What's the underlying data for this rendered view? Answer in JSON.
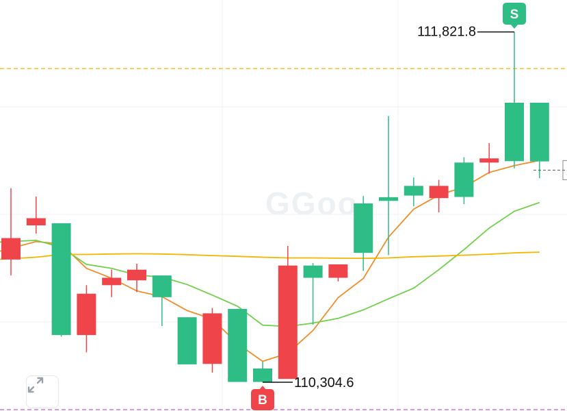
{
  "watermark": "GGoo",
  "chart_data": {
    "type": "candlestick",
    "ylim": [
      110180,
      111960
    ],
    "grid": true,
    "candles": [
      {
        "open": 110929,
        "close": 110836,
        "high": 111145,
        "low": 110767
      },
      {
        "open": 111015,
        "close": 110984,
        "high": 111109,
        "low": 110948
      },
      {
        "open": 110509,
        "close": 110993,
        "high": 110993,
        "low": 110502
      },
      {
        "open": 110688,
        "close": 110509,
        "high": 110725,
        "low": 110434
      },
      {
        "open": 110757,
        "close": 110725,
        "high": 110793,
        "low": 110673
      },
      {
        "open": 110792,
        "close": 110746,
        "high": 110818,
        "low": 110695
      },
      {
        "open": 110673,
        "close": 110767,
        "high": 110767,
        "low": 110548
      },
      {
        "open": 110382,
        "close": 110586,
        "high": 110586,
        "low": 110382
      },
      {
        "open": 110603,
        "close": 110384,
        "high": 110626,
        "low": 110346
      },
      {
        "open": 110306,
        "close": 110622,
        "high": 110622,
        "low": 110306
      },
      {
        "open": 110306,
        "close": 110364,
        "high": 110394,
        "low": 110304.6
      },
      {
        "open": 110810,
        "close": 110319,
        "high": 110895,
        "low": 110319
      },
      {
        "open": 110757,
        "close": 110810,
        "high": 110821,
        "low": 110554
      },
      {
        "open": 110815,
        "close": 110757,
        "high": 110815,
        "low": 110741
      },
      {
        "open": 110865,
        "close": 111079,
        "high": 111111,
        "low": 110787
      },
      {
        "open": 111090,
        "close": 111106,
        "high": 111458,
        "low": 110855
      },
      {
        "open": 111113,
        "close": 111155,
        "high": 111191,
        "low": 111067
      },
      {
        "open": 111155,
        "close": 111102,
        "high": 111181,
        "low": 111040
      },
      {
        "open": 111107,
        "close": 111256,
        "high": 111279,
        "low": 111076
      },
      {
        "open": 111274,
        "close": 111256,
        "high": 111340,
        "low": 111208
      },
      {
        "open": 111262,
        "close": 111515,
        "high": 111821.8,
        "low": 111231
      },
      {
        "open": 111261,
        "close": 111515,
        "high": 111515,
        "low": 111188
      }
    ],
    "moving_averages": [
      {
        "color": "#f28c28",
        "values": [
          110872,
          110914,
          110903,
          110798,
          110755,
          110700,
          110675,
          110615,
          110578,
          110472,
          110395,
          110430,
          110529,
          110671,
          110754,
          110933,
          111054,
          111115,
          111150,
          111213,
          111243,
          111265
        ]
      },
      {
        "color": "#6fd14a",
        "values": [
          110912,
          110919,
          110889,
          110815,
          110798,
          110769,
          110760,
          110728,
          110682,
          110634,
          110552,
          110546,
          110561,
          110581,
          110618,
          110666,
          110712,
          110792,
          110879,
          110972,
          111045,
          111083
        ]
      },
      {
        "color": "#f5b400",
        "values": [
          110837,
          110846,
          110858,
          110858,
          110860,
          110861,
          110860,
          110857,
          110853,
          110850,
          110846,
          110843,
          110843,
          110842,
          110841,
          110843,
          110848,
          110851,
          110855,
          110859,
          110865,
          110868
        ]
      }
    ],
    "reference_lines": [
      {
        "value": 111663,
        "color": "#f5b400",
        "style": "dashed"
      },
      {
        "value": 110186,
        "color": "#c05cd6",
        "style": "dashed"
      }
    ],
    "last_price_line": {
      "value": 111223,
      "style": "dashed"
    },
    "annotations": {
      "high": {
        "label": "111,821.8",
        "value": 111821.8,
        "candle_index": 20,
        "marker": "S"
      },
      "low": {
        "label": "110,304.6",
        "value": 110304.6,
        "candle_index": 10,
        "marker": "B"
      }
    },
    "colors": {
      "up": "#2ebd85",
      "down": "#ef454a",
      "grid": "#f1f2f4"
    }
  }
}
